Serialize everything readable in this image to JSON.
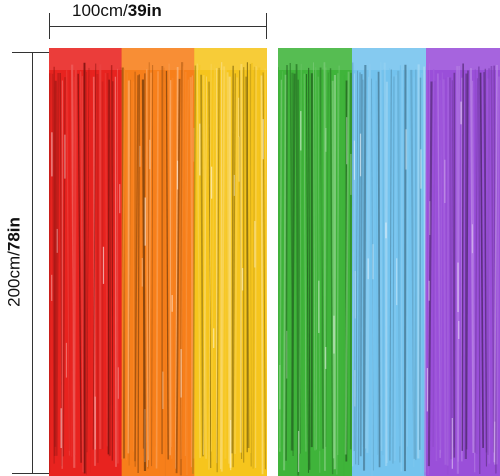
{
  "dimensions": {
    "width_value": "100cm/",
    "width_bold": "39in",
    "height_value": "200cm/",
    "height_bold": "78in"
  },
  "curtain_colors": {
    "left_panel": [
      "#e8231f",
      "#f77f1a",
      "#f6c51d"
    ],
    "right_panel": [
      "#3fb43a",
      "#74c3ee",
      "#9a4fd9"
    ]
  }
}
